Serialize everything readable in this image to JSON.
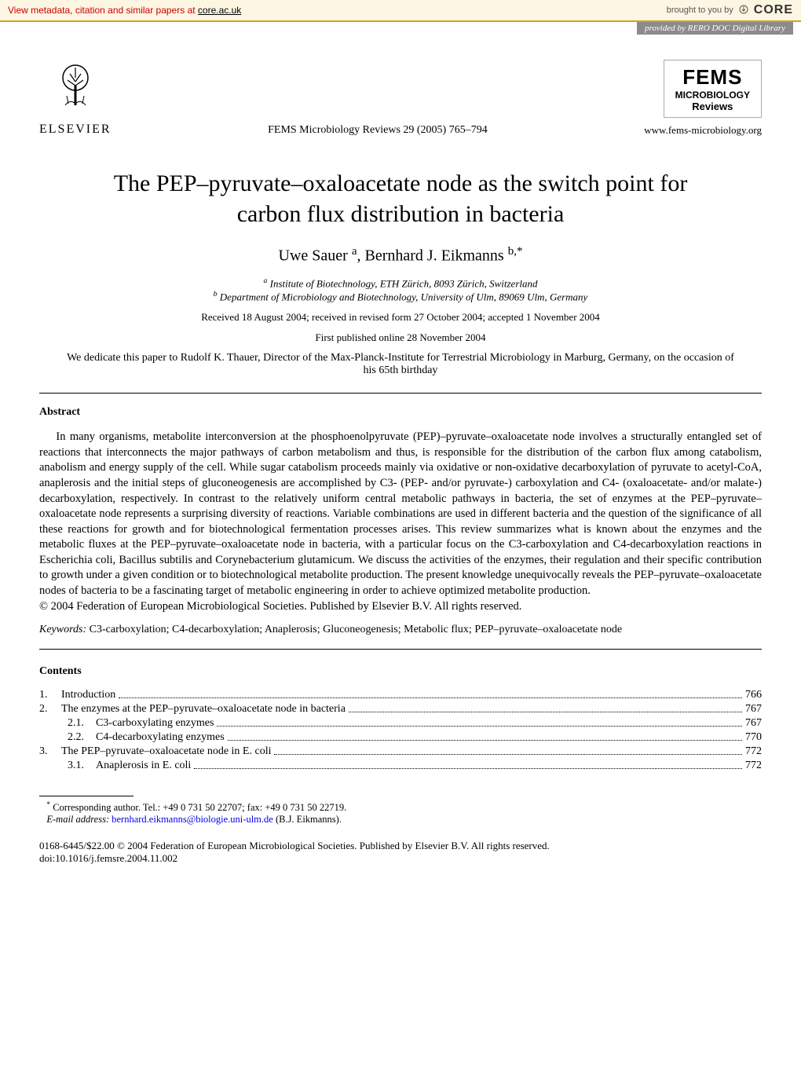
{
  "banner": {
    "left_prefix": "View metadata, citation and similar papers at ",
    "link_text": "core.ac.uk",
    "right_prefix": "brought to you by",
    "core_label": "CORE",
    "provided_by": "provided by RERO DOC Digital Library"
  },
  "header": {
    "elsevier_label": "ELSEVIER",
    "journal_line": "FEMS Microbiology Reviews 29 (2005) 765–794",
    "fems_main": "FEMS",
    "fems_sub1": "MICROBIOLOGY",
    "fems_sub2": "Reviews",
    "fems_url": "www.fems-microbiology.org"
  },
  "title": "The PEP–pyruvate–oxaloacetate node as the switch point for carbon flux distribution in bacteria",
  "authors_html": "Uwe Sauer ",
  "author1": "Uwe Sauer",
  "author1_sup": "a",
  "author2": "Bernhard J. Eikmanns",
  "author2_sup": "b,*",
  "affil_a_sup": "a",
  "affil_a": " Institute of Biotechnology, ETH Zürich, 8093 Zürich, Switzerland",
  "affil_b_sup": "b",
  "affil_b": " Department of Microbiology and Biotechnology, University of Ulm, 89069 Ulm, Germany",
  "received": "Received 18 August 2004; received in revised form 27 October 2004; accepted 1 November 2004",
  "first_published": "First published online 28 November 2004",
  "dedication": "We dedicate this paper to Rudolf K. Thauer, Director of the Max-Planck-Institute for Terrestrial Microbiology in Marburg, Germany, on the occasion of his 65th birthday",
  "abstract_heading": "Abstract",
  "abstract_body": "In many organisms, metabolite interconversion at the phosphoenolpyruvate (PEP)–pyruvate–oxaloacetate node involves a structurally entangled set of reactions that interconnects the major pathways of carbon metabolism and thus, is responsible for the distribution of the carbon flux among catabolism, anabolism and energy supply of the cell. While sugar catabolism proceeds mainly via oxidative or non-oxidative decarboxylation of pyruvate to acetyl-CoA, anaplerosis and the initial steps of gluconeogenesis are accomplished by C3- (PEP- and/or pyruvate-) carboxylation and C4- (oxaloacetate- and/or malate-) decarboxylation, respectively. In contrast to the relatively uniform central metabolic pathways in bacteria, the set of enzymes at the PEP–pyruvate–oxaloacetate node represents a surprising diversity of reactions. Variable combinations are used in different bacteria and the question of the significance of all these reactions for growth and for biotechnological fermentation processes arises. This review summarizes what is known about the enzymes and the metabolic fluxes at the PEP–pyruvate–oxaloacetate node in bacteria, with a particular focus on the C3-carboxylation and C4-decarboxylation reactions in Escherichia coli, Bacillus subtilis and Corynebacterium glutamicum. We discuss the activities of the enzymes, their regulation and their specific contribution to growth under a given condition or to biotechnological metabolite production. The present knowledge unequivocally reveals the PEP–pyruvate–oxaloacetate nodes of bacteria to be a fascinating target of metabolic engineering in order to achieve optimized metabolite production.",
  "copyright_line": "© 2004 Federation of European Microbiological Societies. Published by Elsevier B.V. All rights reserved.",
  "keywords_label": "Keywords:",
  "keywords": " C3-carboxylation; C4-decarboxylation; Anaplerosis; Gluconeogenesis; Metabolic flux; PEP–pyruvate–oxaloacetate node",
  "contents_heading": "Contents",
  "toc": [
    {
      "level": 1,
      "num": "1.",
      "title": "Introduction",
      "page": "766"
    },
    {
      "level": 1,
      "num": "2.",
      "title": "The enzymes at the PEP–pyruvate–oxaloacetate node in bacteria",
      "page": "767"
    },
    {
      "level": 2,
      "num": "2.1.",
      "title": "C3-carboxylating enzymes",
      "page": "767"
    },
    {
      "level": 2,
      "num": "2.2.",
      "title": "C4-decarboxylating enzymes",
      "page": "770"
    },
    {
      "level": 1,
      "num": "3.",
      "title": "The PEP–pyruvate–oxaloacetate node in E. coli",
      "page": "772"
    },
    {
      "level": 2,
      "num": "3.1.",
      "title": "Anaplerosis in E. coli",
      "page": "772"
    }
  ],
  "footnote": {
    "corr_marker": "*",
    "corr_text": " Corresponding author. Tel.: +49 0 731 50 22707; fax: +49 0 731 50 22719.",
    "email_label": "E-mail address: ",
    "email": "bernhard.eikmanns@biologie.uni-ulm.de",
    "email_suffix": " (B.J. Eikmanns)."
  },
  "footer": {
    "line1": "0168-6445/$22.00 © 2004 Federation of European Microbiological Societies. Published by Elsevier B.V. All rights reserved.",
    "doi": "doi:10.1016/j.femsre.2004.11.002"
  }
}
